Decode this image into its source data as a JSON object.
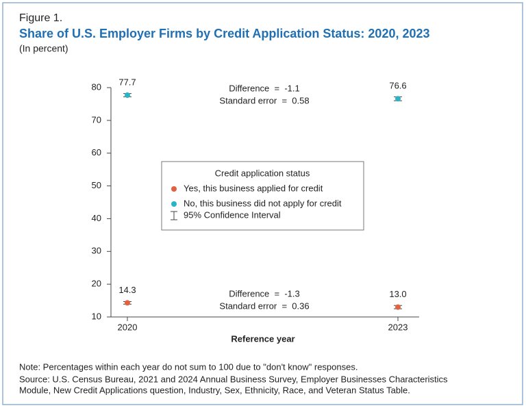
{
  "chart_data": {
    "type": "dot",
    "figure_label": "Figure 1.",
    "title": "Share of U.S. Employer Firms by Credit Application Status: 2020, 2023",
    "subtitle": "(In percent)",
    "x_label": "Reference year",
    "categories": [
      "2020",
      "2023"
    ],
    "series": [
      {
        "name": "Yes, this business applied for credit",
        "color": "#e2623f",
        "values": [
          14.3,
          13.0
        ],
        "value_labels": [
          "14.3",
          "13.0"
        ],
        "errors": [
          0.4,
          0.5
        ]
      },
      {
        "name": "No, this business did not apply for credit",
        "color": "#2ab3c6",
        "values": [
          77.7,
          76.6
        ],
        "errors": [
          0.5,
          0.6
        ]
      }
    ],
    "ylim": [
      10,
      80
    ],
    "yticks": [
      10,
      20,
      30,
      40,
      50,
      60,
      70,
      80
    ],
    "legend_title": "Credit application status",
    "error_bar_label": "95% Confidence Interval",
    "annotations": [
      "Difference  =  -1.1",
      "Standard error  =  0.58",
      "Difference  =  -1.3",
      "Standard error  =  0.36"
    ],
    "note": "Note: Percentages within each year do not sum to 100 due to \"don't know\" responses.",
    "source": [
      "Source: U.S. Census Bureau, 2021 and 2024 Annual Business Survey, Employer Businesses Characteristics",
      "Module, New Credit Applications question, Industry, Sex, Ethnicity, Race, and Veteran Status Table."
    ]
  }
}
